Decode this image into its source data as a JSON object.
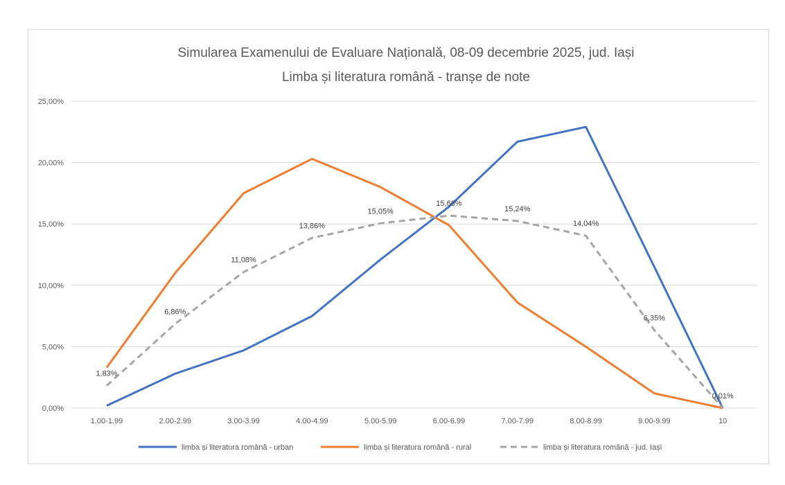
{
  "chart_data": {
    "type": "line",
    "title": [
      "Simularea Examenului de Evaluare Națională, 08-09 decembrie 2025, jud. Iași",
      "Limba și literatura română - tranșe de note"
    ],
    "categories": [
      "1.00-1.99",
      "2.00-2.99",
      "3.00-3.99",
      "4.00-4.99",
      "5.00-5.99",
      "6.00-6.99",
      "7.00-7.99",
      "8.00-8.99",
      "9.00-9.99",
      "10"
    ],
    "ylim": [
      0,
      25
    ],
    "yticks": [
      "0,00%",
      "5,00%",
      "10,00%",
      "15,00%",
      "20,00%",
      "25,00%"
    ],
    "ytick_values": [
      0,
      5,
      10,
      15,
      20,
      25
    ],
    "grid": true,
    "legend_placement": "bottom",
    "series": [
      {
        "name": "limba și literatura română - urban",
        "color": "#4472c4",
        "dash": false,
        "values": [
          0.2,
          2.8,
          4.7,
          7.5,
          12.1,
          16.4,
          21.7,
          22.9,
          11.5,
          0.0
        ],
        "labels": null
      },
      {
        "name": "limba și literatura română - rural",
        "color": "#ed7d31",
        "dash": false,
        "values": [
          3.3,
          11.0,
          17.5,
          20.3,
          18.0,
          14.9,
          8.6,
          5.0,
          1.2,
          0.0
        ],
        "labels": null
      },
      {
        "name": "limba și literatura română - jud. Iași",
        "color": "#a5a5a5",
        "dash": true,
        "values": [
          1.83,
          6.86,
          11.08,
          13.86,
          15.05,
          15.68,
          15.24,
          14.04,
          6.35,
          0.01
        ],
        "labels": [
          "1,83%",
          "6,86%",
          "11,08%",
          "13,86%",
          "15,05%",
          "15,68%",
          "15,24%",
          "14,04%",
          "6,35%",
          "0,01%"
        ]
      }
    ]
  }
}
